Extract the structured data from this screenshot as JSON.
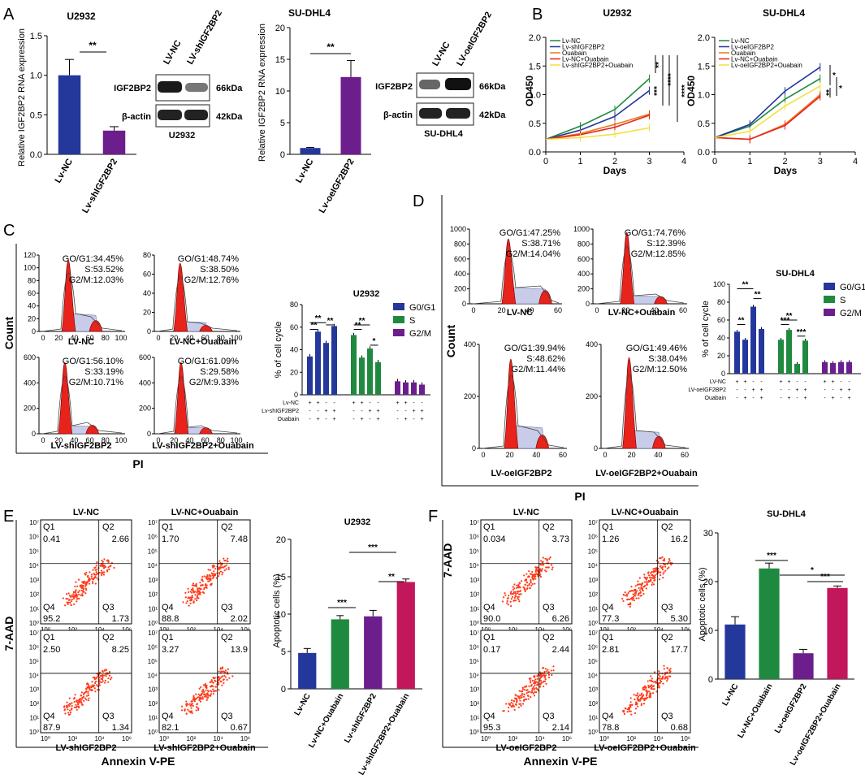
{
  "panel_labels": {
    "A": "A",
    "B": "B",
    "C": "C",
    "D": "D",
    "E": "E",
    "F": "F"
  },
  "colors": {
    "blue": "#24379b",
    "purple": "#6c1e8d",
    "green": "#1f8a3f",
    "magenta": "#c2185b",
    "red": "#e8231c",
    "orange": "#e87a1c",
    "yellow": "#f2e040"
  },
  "panel_a": {
    "left_title": "U2932",
    "right_title": "SU-DHL4",
    "ylabel": "Relative IGF2BP2 RNA expression",
    "left_sig": "**",
    "right_sig": "**",
    "blot_left": {
      "lanes": [
        "LV-NC",
        "LV-shIGF2BP2"
      ],
      "rows": [
        "IGF2BP2",
        "β-actin"
      ],
      "kda": [
        "66kDa",
        "42kDa"
      ],
      "caption": "U2932"
    },
    "blot_right": {
      "lanes": [
        "LV-NC",
        "LV-oeIGF2BP2"
      ],
      "rows": [
        "IGF2BP2",
        "β-actin"
      ],
      "kda": [
        "66kDa",
        "42kDa"
      ],
      "caption": "SU-DHL4"
    }
  },
  "panel_b": {
    "xlabel": "Days",
    "ylabel": "OD450",
    "left_title": "U2932",
    "right_title": "SU-DHL4",
    "left_sigs": [
      "**",
      "***",
      "****",
      "****"
    ],
    "right_sigs": [
      "*",
      "**",
      "*"
    ]
  },
  "panel_c": {
    "hists": [
      {
        "label": "LV-NC",
        "stats": [
          "GO/G1:34.45%",
          "S:53.52%",
          "G2/M:12.03%"
        ]
      },
      {
        "label": "LV-NC+Ouabain",
        "stats": [
          "GO/G1:48.74%",
          "S:38.50%",
          "G2/M:12.76%"
        ]
      },
      {
        "label": "LV-shIGF2BP2",
        "stats": [
          "GO/G1:56.10%",
          "S:33.19%",
          "G2/M:10.71%"
        ]
      },
      {
        "label": "LV-shIGF2BP2+Ouabain",
        "stats": [
          "GO/G1:61.09%",
          "S:29.58%",
          "G2/M:9.33%"
        ]
      }
    ],
    "ylabel": "Count",
    "xlabel": "PI",
    "chart_title": "U2932",
    "chart_ylabel": "% of cell cycle",
    "legend": [
      "G0/G1",
      "S",
      "G2/M"
    ],
    "row_labels": [
      "Lv-NC",
      "Lv-shIGF2BP2",
      "Ouabain"
    ],
    "sigs": [
      "**",
      "**",
      "**",
      "**",
      "**",
      "*"
    ]
  },
  "panel_d": {
    "hists": [
      {
        "label": "LV-NC",
        "stats": [
          "GO/G1:47.25%",
          "S:38.71%",
          "G2/M:14.04%"
        ]
      },
      {
        "label": "LV-NC+Ouabain",
        "stats": [
          "GO/G1:74.76%",
          "S:12.39%",
          "G2/M:12.85%"
        ]
      },
      {
        "label": "LV-oeIGF2BP2",
        "stats": [
          "GO/G1:39.94%",
          "S:48.62%",
          "G2/M:11.44%"
        ]
      },
      {
        "label": "LV-oeIGF2BP2+Ouabain",
        "stats": [
          "GO/G1:49.46%",
          "S:38.04%",
          "G2/M:12.50%"
        ]
      }
    ],
    "ylabel": "Count",
    "xlabel": "PI",
    "chart_title": "SU-DHL4",
    "chart_ylabel": "% of cell cycle",
    "legend": [
      "G0/G1",
      "S",
      "G2/M"
    ],
    "row_labels": [
      "LV-NC",
      "LV-oeIGF2BP2",
      "Ouabain"
    ],
    "sigs": [
      "**",
      "**",
      "**",
      "***",
      "**",
      "***"
    ]
  },
  "panel_e": {
    "titles": [
      "LV-NC",
      "LV-NC+Ouabain",
      "LV-shIGF2BP2",
      "LV-shIGF2BP2+Ouabain"
    ],
    "quadrants": [
      {
        "q1": "0.41",
        "q2": "2.66",
        "q3": "1.73",
        "q4": "95.2"
      },
      {
        "q1": "1.70",
        "q2": "7.48",
        "q3": "2.02",
        "q4": "88.8"
      },
      {
        "q1": "2.50",
        "q2": "8.25",
        "q3": "1.34",
        "q4": "87.9"
      },
      {
        "q1": "3.27",
        "q2": "13.9",
        "q3": "0.67",
        "q4": "82.1"
      }
    ],
    "ylabel": "7-AAD",
    "xlabel": "Annexin V-PE",
    "chart_title": "U2932",
    "chart_ylabel": "Apoptotic cells (%)",
    "sigs": [
      "***",
      "***",
      "**"
    ]
  },
  "panel_f": {
    "titles": [
      "LV-NC",
      "LV-NC+Ouabain",
      "LV-oeIGF2BP2",
      "LV-oeIGF2BP2+Ouabain"
    ],
    "quadrants": [
      {
        "q1": "0.034",
        "q2": "3.73",
        "q3": "6.26",
        "q4": "90.0"
      },
      {
        "q1": "1.26",
        "q2": "16.2",
        "q3": "5.30",
        "q4": "77.3"
      },
      {
        "q1": "0.17",
        "q2": "2.44",
        "q3": "2.14",
        "q4": "95.3"
      },
      {
        "q1": "2.81",
        "q2": "17.7",
        "q3": "0.68",
        "q4": "78.8"
      }
    ],
    "ylabel": "7-AAD",
    "xlabel": "Annexin V-PE",
    "chart_title": "SU-DHL4",
    "chart_ylabel": "Apoptotic cells (%)",
    "sigs": [
      "***",
      "*",
      "***"
    ]
  },
  "chart_data": [
    {
      "id": "A-left",
      "type": "bar",
      "title": "U2932",
      "ylabel": "Relative IGF2BP2 RNA expression",
      "categories": [
        "Lv-NC",
        "Lv-shIGF2BP2"
      ],
      "values": [
        1.0,
        0.3
      ],
      "errors": [
        0.2,
        0.05
      ],
      "ylim": [
        0,
        1.5
      ],
      "yticks": [
        "0.0",
        "0.5",
        "1.0",
        "1.5"
      ]
    },
    {
      "id": "A-right",
      "type": "bar",
      "title": "SU-DHL4",
      "ylabel": "Relative IGF2BP2 RNA expression",
      "categories": [
        "Lv-NC",
        "Lv-oeIGF2BP2"
      ],
      "values": [
        1.0,
        12.2
      ],
      "errors": [
        0.1,
        2.6
      ],
      "ylim": [
        0,
        20
      ],
      "yticks": [
        "0",
        "5",
        "10",
        "15",
        "20"
      ]
    },
    {
      "id": "B-left",
      "type": "line",
      "title": "U2932",
      "xlabel": "Days",
      "ylabel": "OD450",
      "x": [
        0,
        1,
        2,
        3
      ],
      "xticks": [
        "0",
        "1",
        "2",
        "3",
        "4"
      ],
      "yticks": [
        "0.0",
        "0.5",
        "1.0",
        "1.5",
        "2.0"
      ],
      "xlim": [
        0,
        4
      ],
      "ylim": [
        0,
        2
      ],
      "series": [
        {
          "name": "Lv-NC",
          "values": [
            0.22,
            0.45,
            0.74,
            1.28
          ]
        },
        {
          "name": "Lv-shIGF2BP2",
          "values": [
            0.22,
            0.38,
            0.62,
            1.07
          ]
        },
        {
          "name": "Ouabain",
          "values": [
            0.22,
            0.32,
            0.48,
            0.66
          ]
        },
        {
          "name": "Lv-NC+Ouabain",
          "values": [
            0.22,
            0.3,
            0.43,
            0.64
          ]
        },
        {
          "name": "Lv-shIGF2BP2+Ouabain",
          "values": [
            0.22,
            0.25,
            0.31,
            0.42
          ]
        }
      ]
    },
    {
      "id": "B-right",
      "type": "line",
      "title": "SU-DHL4",
      "xlabel": "Days",
      "ylabel": "OD450",
      "x": [
        0,
        1,
        2,
        3
      ],
      "xticks": [
        "0",
        "1",
        "2",
        "3",
        "4"
      ],
      "yticks": [
        "0.0",
        "0.5",
        "1.0",
        "1.5",
        "2.0"
      ],
      "xlim": [
        0,
        4
      ],
      "ylim": [
        0,
        2
      ],
      "series": [
        {
          "name": "Lv-NC",
          "values": [
            0.25,
            0.45,
            0.92,
            1.28
          ]
        },
        {
          "name": "Lv-oeIGF2BP2",
          "values": [
            0.25,
            0.48,
            1.06,
            1.48
          ]
        },
        {
          "name": "Ouabain",
          "values": [
            0.25,
            0.22,
            0.48,
            1.0
          ]
        },
        {
          "name": "Lv-NC+Ouabain",
          "values": [
            0.25,
            0.22,
            0.46,
            0.97
          ]
        },
        {
          "name": "Lv-oeIGF2BP2+Ouabain",
          "values": [
            0.25,
            0.36,
            0.8,
            1.15
          ]
        }
      ]
    },
    {
      "id": "C-chart",
      "type": "bar",
      "title": "U2932",
      "ylabel": "% of cell cycle",
      "ylim": [
        0,
        80
      ],
      "yticks": [
        "0",
        "20",
        "40",
        "60",
        "80"
      ],
      "series": [
        {
          "name": "G0/G1",
          "values": [
            34,
            56,
            46,
            61
          ]
        },
        {
          "name": "S",
          "values": [
            53,
            33,
            41,
            29
          ]
        },
        {
          "name": "G2/M",
          "values": [
            12,
            11,
            11,
            9
          ]
        }
      ]
    },
    {
      "id": "D-chart",
      "type": "bar",
      "title": "SU-DHL4",
      "ylabel": "% of cell cycle",
      "ylim": [
        0,
        100
      ],
      "yticks": [
        "0",
        "20",
        "40",
        "60",
        "80",
        "100"
      ],
      "series": [
        {
          "name": "G0/G1",
          "values": [
            47,
            38,
            75,
            50
          ]
        },
        {
          "name": "S",
          "values": [
            38,
            49,
            11,
            37
          ]
        },
        {
          "name": "G2/M",
          "values": [
            13,
            12,
            13,
            13
          ]
        }
      ]
    },
    {
      "id": "E-chart",
      "type": "bar",
      "title": "U2932",
      "ylabel": "Apoptotic cells (%)",
      "categories": [
        "Lv-NC",
        "Lv-NC+Ouabain",
        "Lv-shIGF2BP2",
        "Lv-shIGF2BP2+Ouabain"
      ],
      "values": [
        4.8,
        9.3,
        9.7,
        14.3
      ],
      "errors": [
        0.6,
        0.5,
        0.8,
        0.4
      ],
      "ylim": [
        0,
        20
      ],
      "yticks": [
        "0",
        "5",
        "10",
        "15",
        "20"
      ]
    },
    {
      "id": "F-chart",
      "type": "bar",
      "title": "SU-DHL4",
      "ylabel": "Apoptotic cells (%)",
      "categories": [
        "Lv-NC",
        "Lv-NC+Ouabain",
        "Lv-oeIGF2BP2",
        "Lv-oeIGF2BP2+Ouabain"
      ],
      "values": [
        11.2,
        22.7,
        5.3,
        18.7
      ],
      "errors": [
        1.6,
        1.1,
        0.8,
        0.4
      ],
      "ylim": [
        0,
        30
      ],
      "yticks": [
        "0",
        "10",
        "20",
        "30"
      ]
    }
  ]
}
